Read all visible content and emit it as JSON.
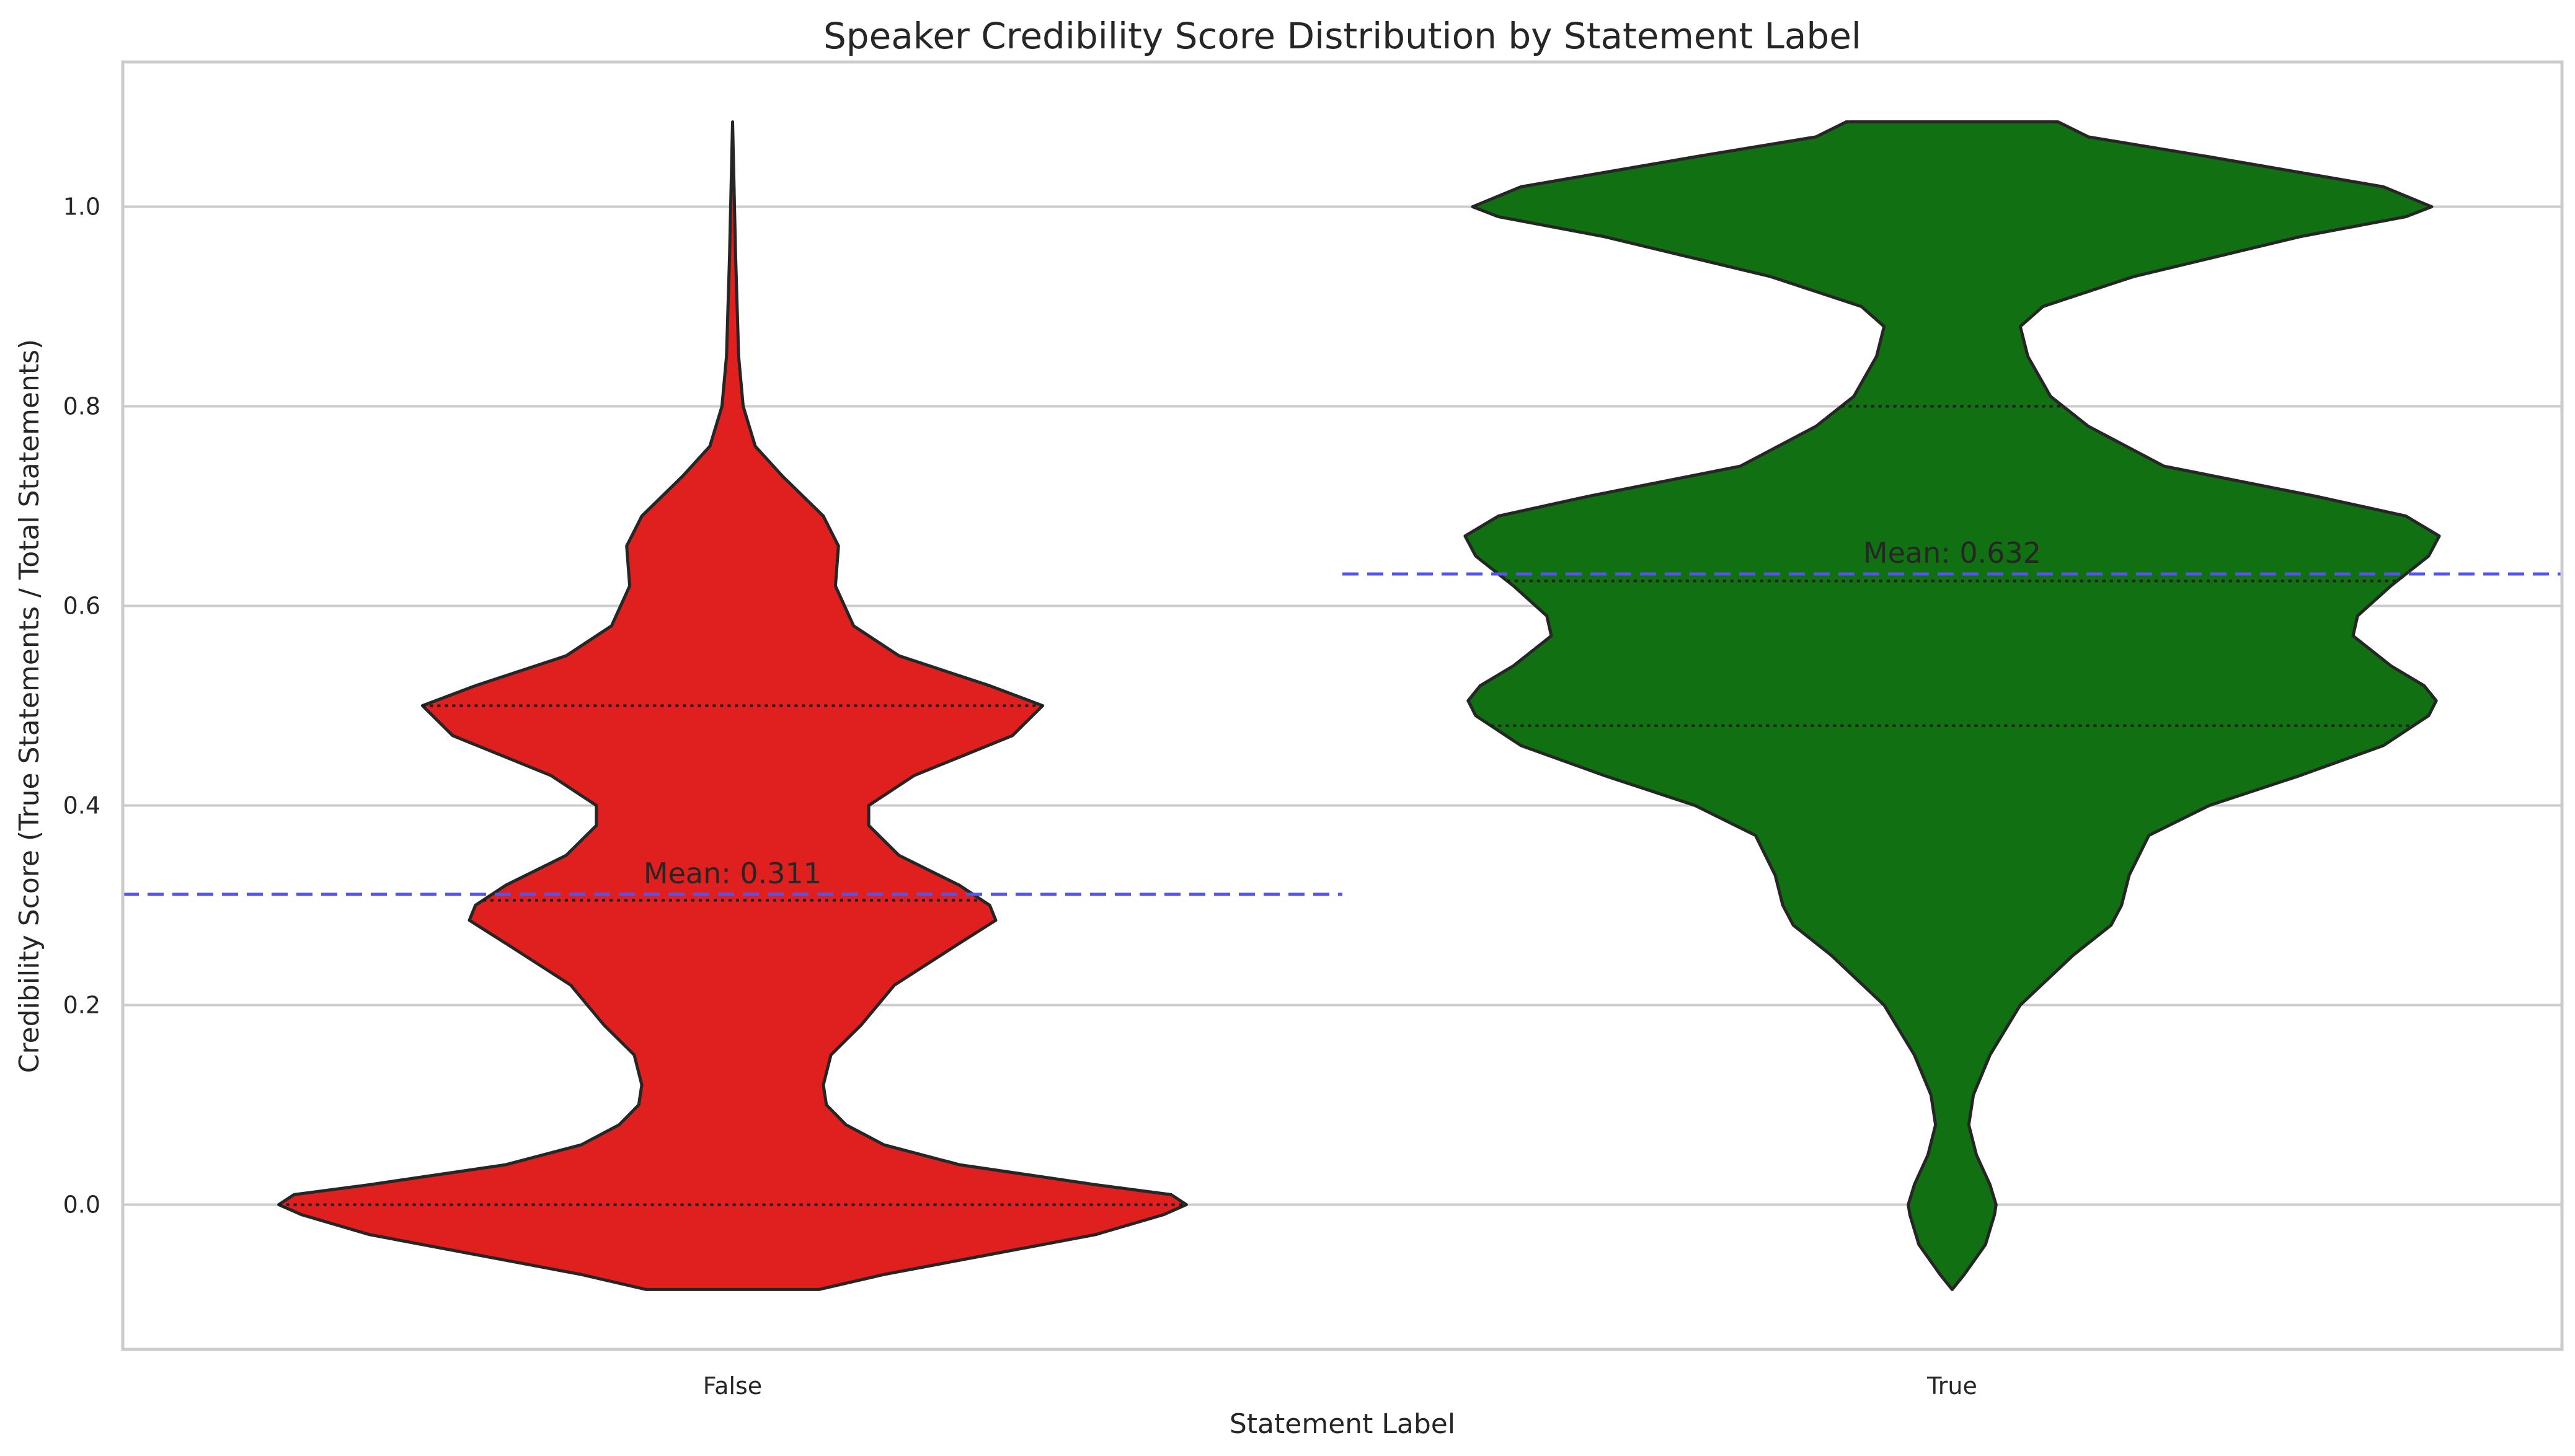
{
  "chart_data": {
    "type": "violin",
    "title": "Speaker Credibility Score Distribution by Statement Label",
    "xlabel": "Statement Label",
    "ylabel": "Credibility Score (True Statements / Total Statements)",
    "ylim": [
      -0.145,
      1.145
    ],
    "yticks": [
      0.0,
      0.2,
      0.4,
      0.6,
      0.8,
      1.0
    ],
    "ytick_labels": [
      "0.0",
      "0.2",
      "0.4",
      "0.6",
      "0.8",
      "1.0"
    ],
    "grid": "horizontal",
    "categories": [
      "False",
      "True"
    ],
    "series": [
      {
        "category": "False",
        "color": "#e01f1f",
        "density_halfwidth": [
          [
            -0.085,
            0.057
          ],
          [
            -0.07,
            0.1
          ],
          [
            -0.05,
            0.17
          ],
          [
            -0.03,
            0.24
          ],
          [
            -0.01,
            0.285
          ],
          [
            0.0,
            0.3
          ],
          [
            0.01,
            0.29
          ],
          [
            0.02,
            0.24
          ],
          [
            0.04,
            0.15
          ],
          [
            0.06,
            0.1
          ],
          [
            0.08,
            0.075
          ],
          [
            0.1,
            0.062
          ],
          [
            0.12,
            0.06
          ],
          [
            0.15,
            0.065
          ],
          [
            0.18,
            0.085
          ],
          [
            0.22,
            0.107
          ],
          [
            0.26,
            0.148
          ],
          [
            0.285,
            0.174
          ],
          [
            0.3,
            0.17
          ],
          [
            0.32,
            0.15
          ],
          [
            0.35,
            0.11
          ],
          [
            0.38,
            0.09
          ],
          [
            0.4,
            0.09
          ],
          [
            0.43,
            0.12
          ],
          [
            0.47,
            0.185
          ],
          [
            0.5,
            0.205
          ],
          [
            0.52,
            0.17
          ],
          [
            0.55,
            0.11
          ],
          [
            0.58,
            0.08
          ],
          [
            0.62,
            0.068
          ],
          [
            0.66,
            0.07
          ],
          [
            0.69,
            0.06
          ],
          [
            0.73,
            0.033
          ],
          [
            0.76,
            0.015
          ],
          [
            0.8,
            0.007
          ],
          [
            0.85,
            0.004
          ],
          [
            0.95,
            0.002
          ],
          [
            1.085,
            0.0
          ]
        ],
        "quartiles": [
          0.0,
          0.5
        ],
        "median": 0.305,
        "mean": 0.311,
        "mean_label": "Mean: 0.311"
      },
      {
        "category": "True",
        "color": "#117011",
        "density_halfwidth": [
          [
            -0.085,
            0.0
          ],
          [
            -0.07,
            0.008
          ],
          [
            -0.04,
            0.022
          ],
          [
            -0.01,
            0.028
          ],
          [
            0.0,
            0.029
          ],
          [
            0.02,
            0.025
          ],
          [
            0.05,
            0.016
          ],
          [
            0.08,
            0.011
          ],
          [
            0.11,
            0.014
          ],
          [
            0.15,
            0.025
          ],
          [
            0.2,
            0.045
          ],
          [
            0.25,
            0.08
          ],
          [
            0.28,
            0.105
          ],
          [
            0.3,
            0.112
          ],
          [
            0.33,
            0.117
          ],
          [
            0.37,
            0.13
          ],
          [
            0.4,
            0.17
          ],
          [
            0.43,
            0.23
          ],
          [
            0.46,
            0.285
          ],
          [
            0.49,
            0.315
          ],
          [
            0.505,
            0.32
          ],
          [
            0.52,
            0.312
          ],
          [
            0.54,
            0.29
          ],
          [
            0.57,
            0.265
          ],
          [
            0.59,
            0.268
          ],
          [
            0.62,
            0.29
          ],
          [
            0.65,
            0.315
          ],
          [
            0.67,
            0.322
          ],
          [
            0.69,
            0.3
          ],
          [
            0.71,
            0.24
          ],
          [
            0.74,
            0.14
          ],
          [
            0.78,
            0.09
          ],
          [
            0.81,
            0.065
          ],
          [
            0.85,
            0.05
          ],
          [
            0.88,
            0.045
          ],
          [
            0.9,
            0.06
          ],
          [
            0.93,
            0.12
          ],
          [
            0.97,
            0.23
          ],
          [
            0.99,
            0.3
          ],
          [
            1.0,
            0.317
          ],
          [
            1.02,
            0.285
          ],
          [
            1.05,
            0.17
          ],
          [
            1.07,
            0.09
          ],
          [
            1.085,
            0.07
          ]
        ],
        "quartiles": [
          0.48,
          0.8
        ],
        "median": 0.625,
        "mean": 0.632,
        "mean_label": "Mean: 0.632"
      }
    ]
  }
}
